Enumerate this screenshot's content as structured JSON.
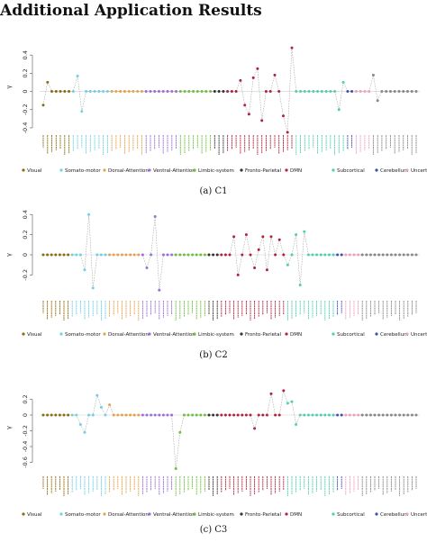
{
  "page_title": "Additional Application Results",
  "groups": [
    {
      "name": "Visual",
      "color": "#8a6d0b",
      "count": 7
    },
    {
      "name": "Somato-motor",
      "color": "#6fd0e6",
      "count": 9
    },
    {
      "name": "Dorsal-Attention",
      "color": "#e8a24a",
      "count": 8
    },
    {
      "name": "Ventral-Attention",
      "color": "#9b6fd6",
      "count": 8
    },
    {
      "name": "Limbic-system",
      "color": "#6fbf3f",
      "count": 8
    },
    {
      "name": "Fronto-Parietal",
      "color": "#333333",
      "count": 3
    },
    {
      "name": "DMN",
      "color": "#b0223c",
      "count": 16
    },
    {
      "name": "Subcortical",
      "color": "#4fcfb0",
      "count": 12
    },
    {
      "name": "Cerebellum",
      "color": "#3b4fb3",
      "count": 2
    },
    {
      "name": "Uncertain",
      "color": "#f0a0b8",
      "count": 4
    }
  ],
  "chart_data": [
    {
      "type": "scatter",
      "caption": "(a) C1",
      "ylabel": "γ",
      "ylim": [
        -0.45,
        0.55
      ],
      "yticks": [
        -0.4,
        -0.2,
        0,
        0.2,
        0.4
      ],
      "values": [
        -0.15,
        0.1,
        0,
        0,
        0,
        0,
        0,
        0,
        0.17,
        -0.22,
        0,
        0,
        0,
        0,
        0,
        0,
        0,
        0,
        0,
        0,
        0,
        0,
        0,
        0,
        0,
        0,
        0,
        0,
        0,
        0,
        0,
        0,
        0,
        0,
        0,
        0,
        0,
        0,
        0,
        0,
        0,
        0,
        0,
        0,
        0,
        0,
        0.12,
        -0.15,
        -0.25,
        0.15,
        0.25,
        -0.32,
        0,
        0,
        0.18,
        0,
        -0.27,
        -0.45,
        0.48,
        0,
        0,
        0,
        0,
        0,
        0,
        0,
        0,
        0,
        0,
        -0.2,
        0.1,
        0,
        0,
        0,
        0,
        0,
        0,
        0.18,
        -0.1,
        0,
        0,
        0,
        0,
        0,
        0,
        0,
        0,
        0
      ]
    },
    {
      "type": "scatter",
      "caption": "(b) C2",
      "ylabel": "γ",
      "ylim": [
        -0.42,
        0.42
      ],
      "yticks": [
        -0.2,
        0,
        0.2,
        0.4
      ],
      "values": [
        0,
        0,
        0,
        0,
        0,
        0,
        0,
        0,
        0,
        0,
        -0.15,
        0.4,
        -0.33,
        0,
        0,
        0,
        0,
        0,
        0,
        0,
        0,
        0,
        0,
        0,
        0,
        -0.13,
        0,
        0.38,
        -0.35,
        0,
        0,
        0,
        0,
        0,
        0,
        0,
        0,
        0,
        0,
        0,
        0,
        0,
        0,
        0,
        0,
        0,
        0.18,
        -0.2,
        0,
        0.2,
        0,
        -0.13,
        0.05,
        0.18,
        -0.15,
        0.18,
        0,
        0.15,
        0,
        -0.1,
        0,
        0.2,
        -0.3,
        0.23,
        0,
        0,
        0,
        0,
        0,
        0,
        0,
        0,
        0,
        0,
        0,
        0,
        0,
        0,
        0,
        0,
        0,
        0,
        0,
        0,
        0,
        0,
        0,
        0,
        0,
        0,
        0
      ]
    },
    {
      "type": "scatter",
      "caption": "(c) C3",
      "ylabel": "γ",
      "ylim": [
        -0.72,
        0.4
      ],
      "yticks": [
        -0.6,
        -0.4,
        -0.2,
        0,
        0.2
      ],
      "values": [
        0,
        0,
        0,
        0,
        0,
        0,
        0,
        0,
        0,
        -0.12,
        -0.22,
        0,
        0,
        0.25,
        0.1,
        0,
        0.13,
        0,
        0,
        0,
        0,
        0,
        0,
        0,
        0,
        0,
        0,
        0,
        0,
        0,
        0,
        0,
        -0.68,
        -0.22,
        0,
        0,
        0,
        0,
        0,
        0,
        0,
        0,
        0,
        0,
        0,
        0,
        0,
        0,
        0,
        0,
        0,
        -0.17,
        0,
        0,
        0,
        0.27,
        0,
        0,
        0.31,
        0.15,
        0.17,
        -0.12,
        0,
        0,
        0,
        0,
        0,
        0,
        0,
        0,
        0,
        0,
        0,
        0,
        0,
        0,
        0,
        0,
        0,
        0,
        0,
        0,
        0,
        0,
        0,
        0,
        0,
        0,
        0,
        0,
        0
      ]
    }
  ]
}
